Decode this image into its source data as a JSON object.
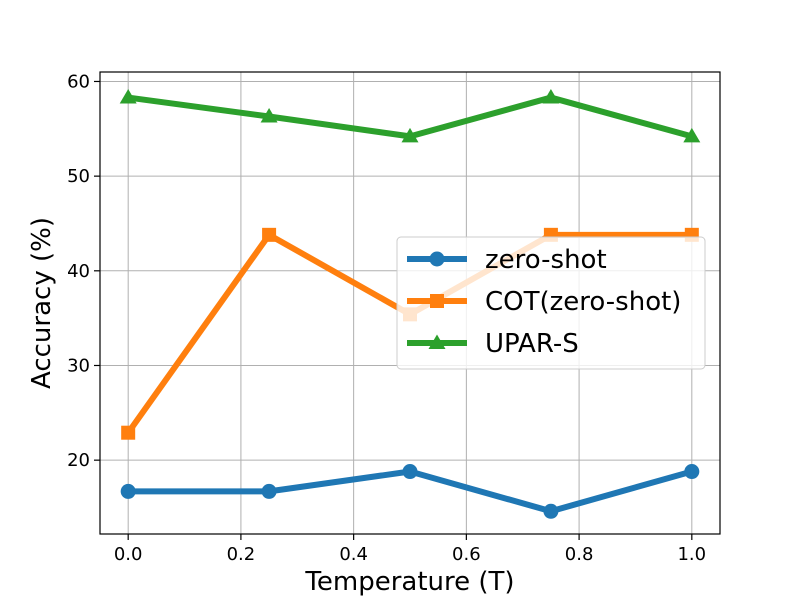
{
  "chart_data": {
    "type": "line",
    "title": "",
    "xlabel": "Temperature (T)",
    "ylabel": "Accuracy (%)",
    "x": [
      0.0,
      0.25,
      0.5,
      0.75,
      1.0
    ],
    "xlim": [
      -0.05,
      1.05
    ],
    "ylim": [
      12.2,
      61
    ],
    "xticks": [
      0.0,
      0.2,
      0.4,
      0.6,
      0.8,
      1.0
    ],
    "xtick_labels": [
      "0.0",
      "0.2",
      "0.4",
      "0.6",
      "0.8",
      "1.0"
    ],
    "yticks": [
      20,
      30,
      40,
      50,
      60
    ],
    "ytick_labels": [
      "20",
      "30",
      "40",
      "50",
      "60"
    ],
    "grid": true,
    "legend_position": "center-right",
    "series": [
      {
        "name": "zero-shot",
        "color": "#1f77b4",
        "marker": "circle",
        "values": [
          16.7,
          16.7,
          18.8,
          14.6,
          18.8
        ]
      },
      {
        "name": "COT(zero-shot)",
        "color": "#ff7f0e",
        "marker": "square",
        "values": [
          22.9,
          43.8,
          35.4,
          43.8,
          43.8
        ]
      },
      {
        "name": "UPAR-S",
        "color": "#2ca02c",
        "marker": "triangle",
        "values": [
          58.3,
          56.3,
          54.2,
          58.3,
          54.2
        ]
      }
    ]
  }
}
